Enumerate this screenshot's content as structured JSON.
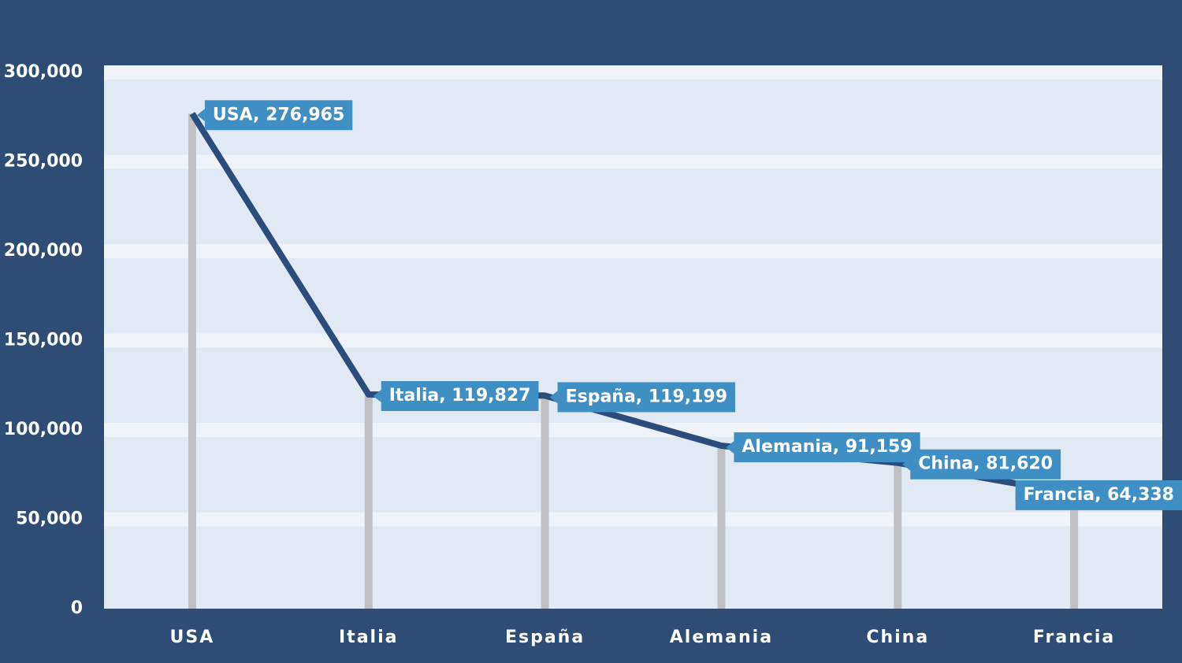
{
  "chart_data": {
    "type": "line",
    "categories": [
      "USA",
      "Italia",
      "España",
      "Alemania",
      "China",
      "Francia"
    ],
    "values": [
      276965,
      119827,
      119199,
      91159,
      81620,
      64338
    ],
    "value_labels": [
      "USA, 276,965",
      "Italia, 119,827",
      "España, 119,199",
      "Alemania, 91,159",
      "China, 81,620",
      "Francia, 64,338"
    ],
    "color": "#2b4d7d",
    "stem_color": "#c0c0c4",
    "label_color": "#3f8fc5",
    "ylim": [
      0,
      300000
    ],
    "yticks": [
      0,
      {
        "value": 50000,
        "label": "50,000"
      },
      {
        "value": 100000,
        "label": "100,000"
      },
      {
        "value": 150000,
        "label": "150,000"
      },
      {
        "value": 200000,
        "label": "200,000"
      },
      {
        "value": 250000,
        "label": "250,000"
      },
      {
        "value": 300000,
        "label": "300,000"
      }
    ],
    "grid": true
  }
}
